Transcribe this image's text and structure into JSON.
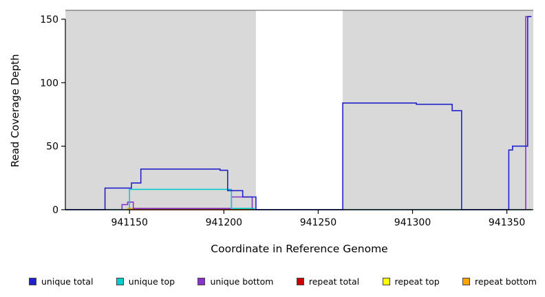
{
  "figure": {
    "background": "#ffffff",
    "plot_background": "#ffffff"
  },
  "chart_data": {
    "type": "line",
    "title": "",
    "xlabel": "Coordinate in Reference Genome",
    "ylabel": "Read Coverage Depth",
    "xlim": [
      941116,
      941364
    ],
    "ylim": [
      0,
      157
    ],
    "xticks": [
      941150,
      941200,
      941250,
      941300,
      941350
    ],
    "yticks": [
      0,
      50,
      100,
      150
    ],
    "grid": false,
    "legend_position": "bottom",
    "shaded_regions": [
      {
        "x0": 941116,
        "x1": 941217,
        "color": "#d9d9d9"
      },
      {
        "x0": 941263,
        "x1": 941364,
        "color": "#d9d9d9"
      }
    ],
    "series": [
      {
        "name": "unique total",
        "color": "#2020cc",
        "points": [
          [
            941116,
            0
          ],
          [
            941137,
            0
          ],
          [
            941137,
            17
          ],
          [
            941151,
            17
          ],
          [
            941151,
            21
          ],
          [
            941156,
            21
          ],
          [
            941156,
            32
          ],
          [
            941198,
            32
          ],
          [
            941198,
            31
          ],
          [
            941202,
            31
          ],
          [
            941202,
            15
          ],
          [
            941210,
            15
          ],
          [
            941210,
            10
          ],
          [
            941217,
            10
          ],
          [
            941217,
            0
          ],
          [
            941263,
            0
          ],
          [
            941263,
            84
          ],
          [
            941302,
            84
          ],
          [
            941302,
            83
          ],
          [
            941321,
            83
          ],
          [
            941321,
            78
          ],
          [
            941326,
            78
          ],
          [
            941326,
            0
          ],
          [
            941351,
            0
          ],
          [
            941351,
            47
          ],
          [
            941353,
            47
          ],
          [
            941353,
            50
          ],
          [
            941361,
            50
          ],
          [
            941361,
            152
          ],
          [
            941363,
            152
          ]
        ]
      },
      {
        "name": "unique top",
        "color": "#00cccc",
        "points": [
          [
            941116,
            0
          ],
          [
            941150,
            0
          ],
          [
            941150,
            16
          ],
          [
            941204,
            16
          ],
          [
            941204,
            1
          ],
          [
            941216,
            1
          ],
          [
            941216,
            0
          ],
          [
            941363,
            0
          ]
        ]
      },
      {
        "name": "unique bottom",
        "color": "#8833cc",
        "points": [
          [
            941116,
            0
          ],
          [
            941146,
            0
          ],
          [
            941146,
            4
          ],
          [
            941149,
            4
          ],
          [
            941149,
            6
          ],
          [
            941152,
            6
          ],
          [
            941152,
            1
          ],
          [
            941204,
            1
          ],
          [
            941204,
            10
          ],
          [
            941215,
            10
          ],
          [
            941215,
            0
          ],
          [
            941360,
            0
          ],
          [
            941360,
            152
          ],
          [
            941363,
            152
          ]
        ]
      },
      {
        "name": "repeat total",
        "color": "#cc0000",
        "points": [
          [
            941116,
            0
          ],
          [
            941363,
            0
          ]
        ]
      },
      {
        "name": "repeat top",
        "color": "#ffff00",
        "points": [
          [
            941116,
            0
          ],
          [
            941363,
            0
          ]
        ]
      },
      {
        "name": "repeat bottom",
        "color": "#ffa500",
        "points": [
          [
            941116,
            0
          ],
          [
            941149,
            0
          ],
          [
            941149,
            1
          ],
          [
            941199,
            1
          ],
          [
            941199,
            0
          ],
          [
            941363,
            0
          ]
        ]
      }
    ]
  }
}
